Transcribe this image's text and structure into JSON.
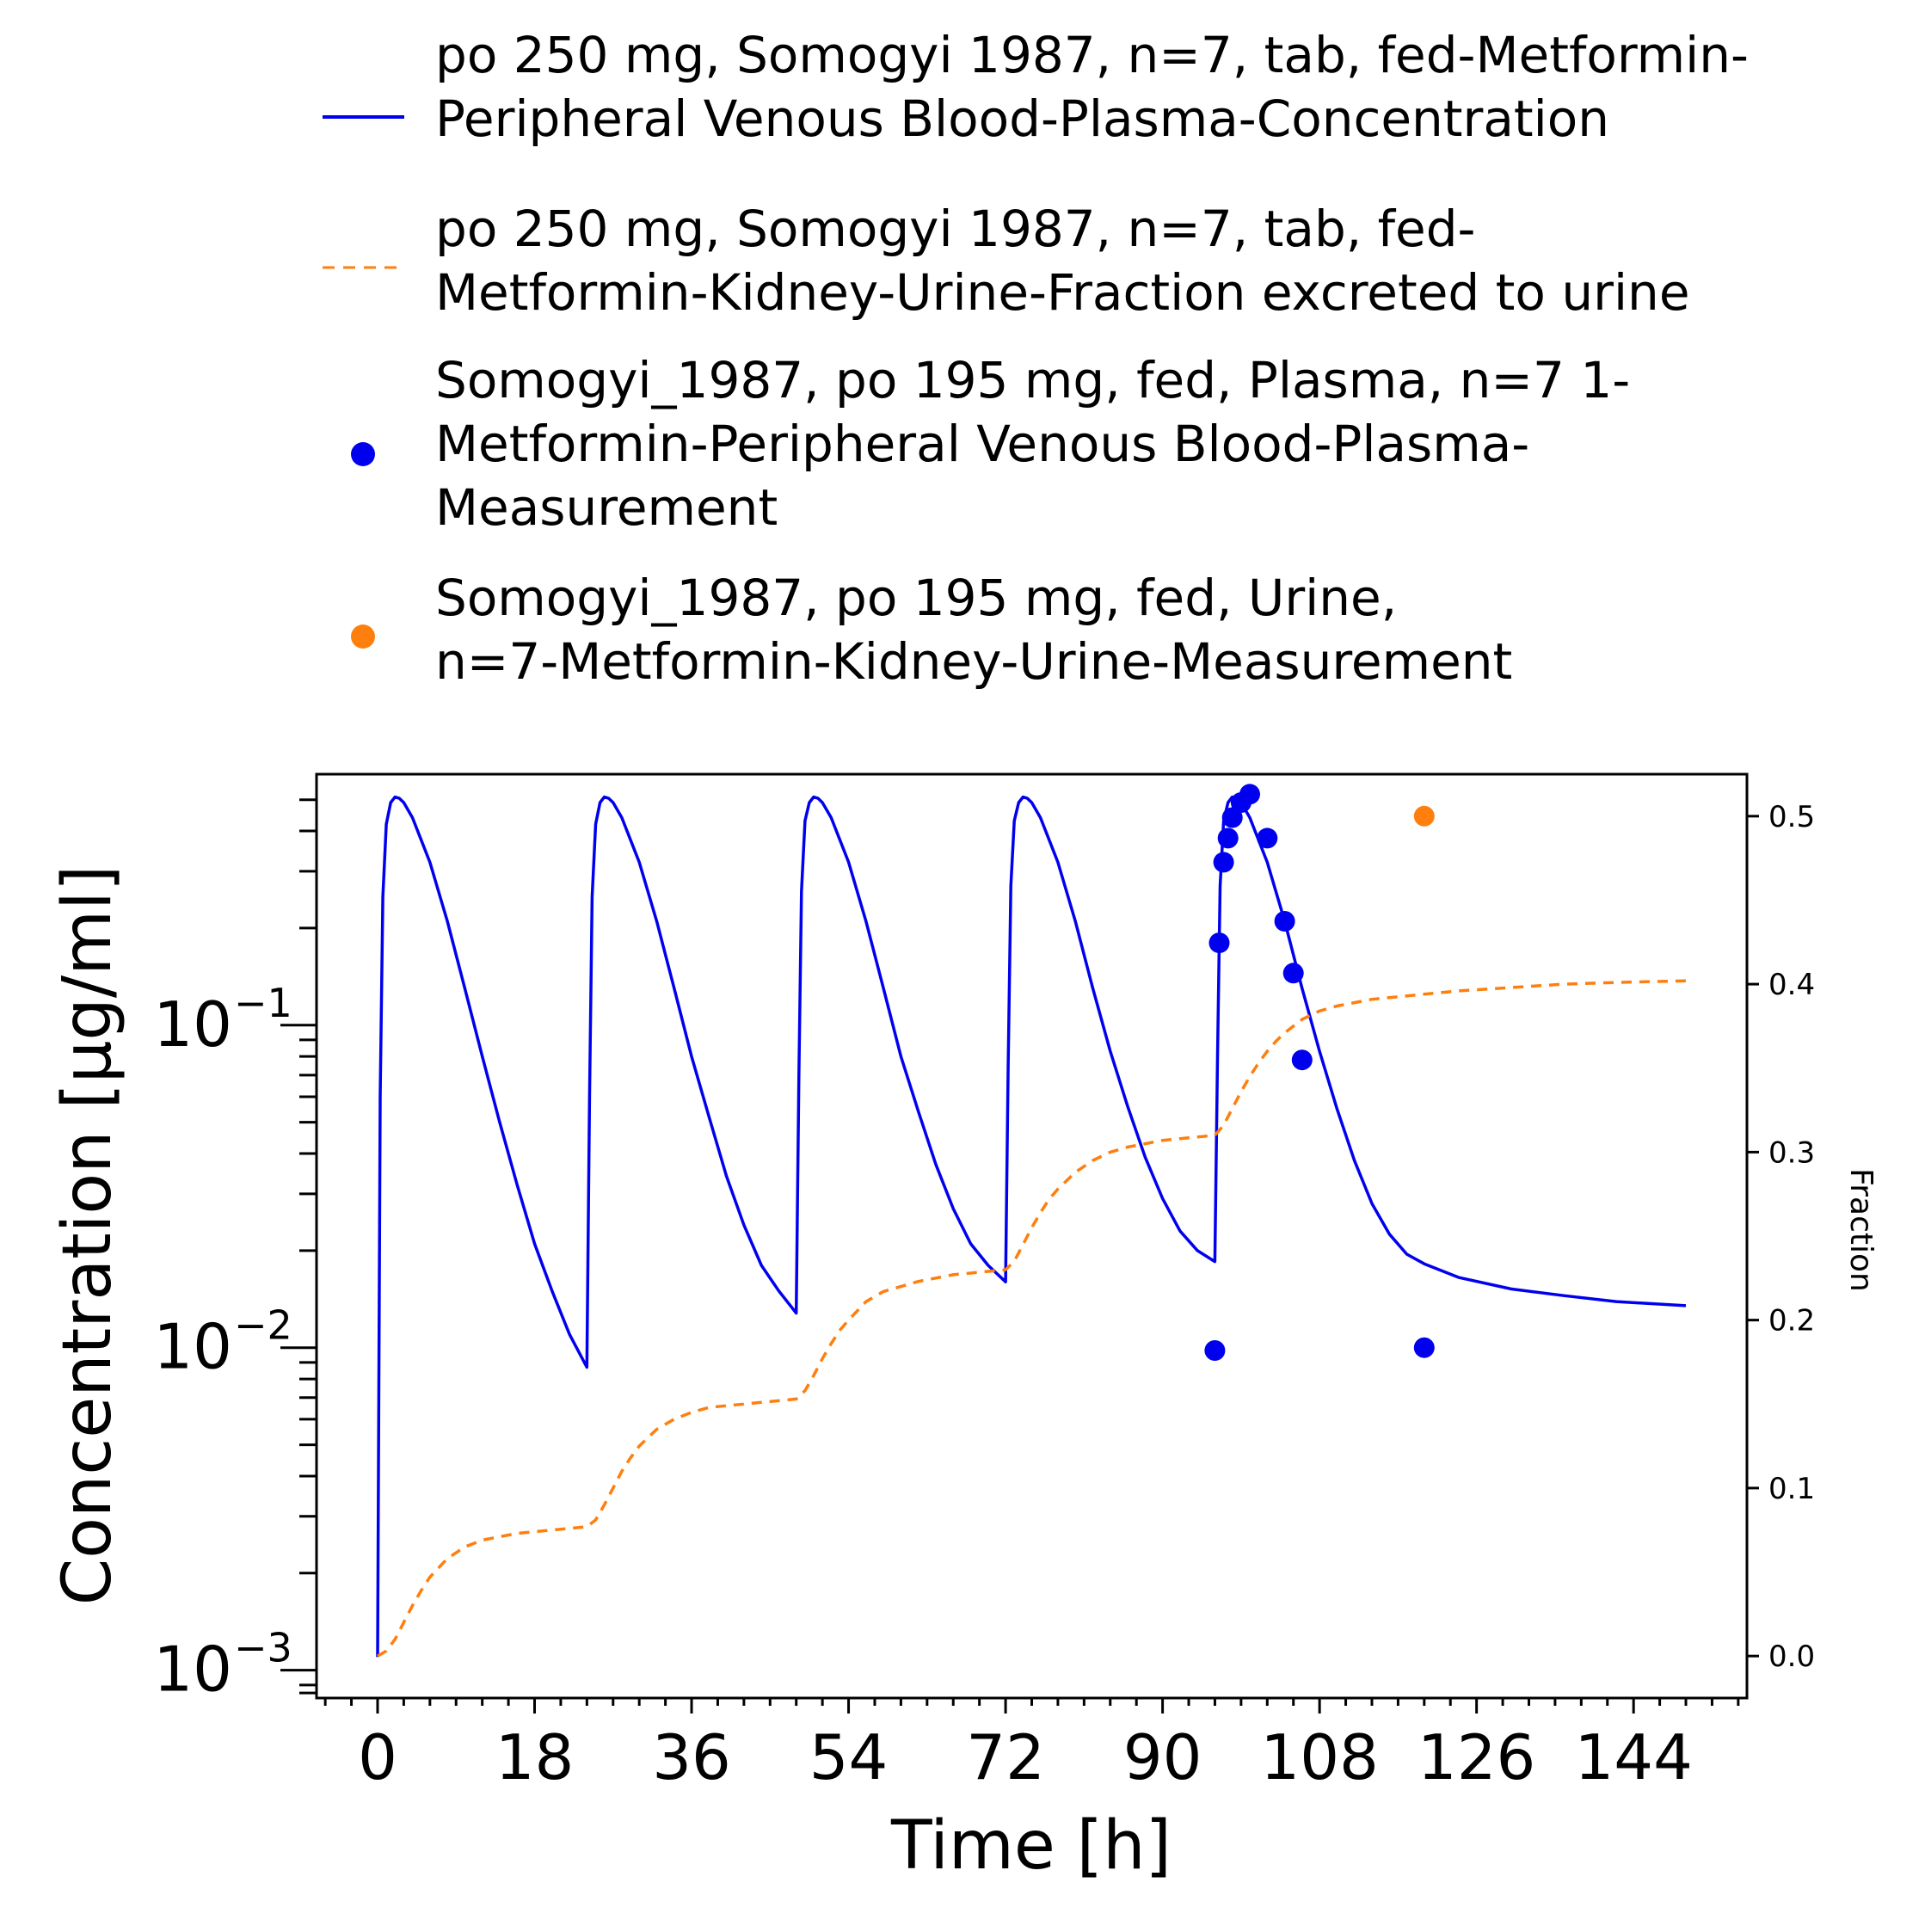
{
  "chart_data": {
    "type": "line",
    "x_axis": {
      "label": "Time [h]",
      "ticks": [
        0,
        18,
        36,
        54,
        72,
        90,
        108,
        126,
        144
      ],
      "range": [
        -7,
        157
      ]
    },
    "y_axis_left": {
      "label": "Concentration [µg/ml]",
      "scale": "log",
      "ticks": [
        {
          "value": 0.001,
          "base": "10",
          "exp": "−3"
        },
        {
          "value": 0.01,
          "base": "10",
          "exp": "−2"
        },
        {
          "value": 0.1,
          "base": "10",
          "exp": "−1"
        }
      ],
      "range": [
        0.00082,
        0.6
      ]
    },
    "y_axis_right": {
      "label": "Fraction",
      "scale": "linear",
      "ticks": [
        "0.0",
        "0.1",
        "0.2",
        "0.3",
        "0.4",
        "0.5"
      ],
      "tick_values": [
        0.0,
        0.1,
        0.2,
        0.3,
        0.4,
        0.5
      ],
      "range": [
        -0.025,
        0.525
      ]
    },
    "legend": {
      "placement": "above plot",
      "entries": [
        {
          "marker": "solid-line",
          "color": "#0000ee",
          "lines": [
            "po 250 mg, Somogyi 1987, n=7, tab, fed-Metformin-",
            "Peripheral Venous Blood-Plasma-Concentration"
          ]
        },
        {
          "marker": "dashed-line",
          "color": "#ff7f0e",
          "lines": [
            "po 250 mg, Somogyi 1987, n=7, tab, fed-",
            "Metformin-Kidney-Urine-Fraction excreted to urine"
          ]
        },
        {
          "marker": "dot",
          "color": "#0000ee",
          "lines": [
            "Somogyi_1987, po 195 mg, fed, Plasma, n=7 1-",
            "Metformin-Peripheral Venous Blood-Plasma-",
            "Measurement"
          ]
        },
        {
          "marker": "dot",
          "color": "#ff7f0e",
          "lines": [
            "Somogyi_1987, po 195 mg, fed, Urine,",
            "n=7-Metformin-Kidney-Urine-Measurement"
          ]
        }
      ]
    },
    "series": [
      {
        "name": "po 250 mg, Somogyi 1987, n=7, tab, fed-Metformin-Peripheral Venous Blood-Plasma-Concentration",
        "kind": "line",
        "axis": "left",
        "color": "#0000ee",
        "style": "solid",
        "x": [
          0,
          0.3,
          0.6,
          1.0,
          1.5,
          2.0,
          2.5,
          3.0,
          4,
          6,
          8,
          10,
          12,
          14,
          16,
          18,
          20,
          22,
          24,
          24.3,
          24.6,
          25.0,
          25.5,
          26.0,
          26.5,
          27,
          28,
          30,
          32,
          34,
          36,
          38,
          40,
          42,
          44,
          46,
          48,
          48.3,
          48.6,
          49.0,
          49.5,
          50.0,
          50.5,
          51,
          52,
          54,
          56,
          58,
          60,
          62,
          64,
          66,
          68,
          70,
          72,
          72.3,
          72.6,
          73.0,
          73.5,
          74.0,
          74.5,
          75,
          76,
          78,
          80,
          82,
          84,
          86,
          88,
          90,
          92,
          94,
          96,
          96.3,
          96.6,
          97.0,
          97.5,
          98.0,
          98.5,
          99,
          100,
          102,
          104,
          106,
          108,
          110,
          112,
          114,
          116,
          118,
          120,
          124,
          130,
          136,
          142,
          150
        ],
        "y": [
          0.0011,
          0.06,
          0.25,
          0.42,
          0.49,
          0.51,
          0.505,
          0.49,
          0.44,
          0.32,
          0.21,
          0.13,
          0.08,
          0.05,
          0.032,
          0.021,
          0.015,
          0.011,
          0.0087,
          0.06,
          0.25,
          0.42,
          0.49,
          0.51,
          0.505,
          0.49,
          0.44,
          0.32,
          0.21,
          0.13,
          0.08,
          0.052,
          0.034,
          0.024,
          0.018,
          0.015,
          0.0128,
          0.07,
          0.26,
          0.43,
          0.49,
          0.51,
          0.505,
          0.49,
          0.44,
          0.32,
          0.21,
          0.13,
          0.08,
          0.054,
          0.037,
          0.027,
          0.021,
          0.018,
          0.016,
          0.075,
          0.27,
          0.43,
          0.49,
          0.51,
          0.505,
          0.49,
          0.44,
          0.32,
          0.21,
          0.13,
          0.083,
          0.056,
          0.039,
          0.029,
          0.023,
          0.02,
          0.0185,
          0.08,
          0.27,
          0.43,
          0.49,
          0.51,
          0.505,
          0.49,
          0.44,
          0.32,
          0.21,
          0.13,
          0.083,
          0.055,
          0.038,
          0.028,
          0.0225,
          0.0195,
          0.0182,
          0.0165,
          0.0152,
          0.0145,
          0.0139,
          0.0135
        ]
      },
      {
        "name": "po 250 mg, Somogyi 1987, n=7, tab, fed-Metformin-Kidney-Urine-Fraction excreted to urine",
        "kind": "line",
        "axis": "right",
        "color": "#ff7f0e",
        "style": "dashed",
        "x": [
          0,
          1,
          2,
          3,
          4,
          5,
          6,
          8,
          10,
          12,
          14,
          16,
          18,
          20,
          22,
          24,
          25,
          26,
          27,
          28,
          29,
          30,
          32,
          34,
          36,
          38,
          40,
          42,
          44,
          46,
          48,
          49,
          50,
          51,
          52,
          53,
          54,
          56,
          58,
          60,
          62,
          64,
          66,
          68,
          70,
          72,
          73,
          74,
          75,
          76,
          77,
          78,
          80,
          82,
          84,
          86,
          88,
          90,
          92,
          94,
          96,
          97,
          98,
          99,
          100,
          101,
          102,
          103,
          104,
          106,
          108,
          110,
          112,
          114,
          116,
          118,
          120,
          124,
          130,
          136,
          142,
          150
        ],
        "y": [
          0.0,
          0.003,
          0.01,
          0.02,
          0.03,
          0.039,
          0.047,
          0.058,
          0.065,
          0.069,
          0.071,
          0.073,
          0.074,
          0.075,
          0.076,
          0.077,
          0.081,
          0.09,
          0.1,
          0.11,
          0.118,
          0.125,
          0.135,
          0.141,
          0.145,
          0.148,
          0.149,
          0.15,
          0.151,
          0.152,
          0.153,
          0.158,
          0.167,
          0.177,
          0.186,
          0.194,
          0.2,
          0.211,
          0.217,
          0.22,
          0.223,
          0.225,
          0.227,
          0.228,
          0.229,
          0.23,
          0.235,
          0.245,
          0.255,
          0.264,
          0.272,
          0.278,
          0.288,
          0.295,
          0.3,
          0.303,
          0.305,
          0.307,
          0.308,
          0.309,
          0.31,
          0.316,
          0.326,
          0.336,
          0.345,
          0.353,
          0.36,
          0.366,
          0.371,
          0.379,
          0.384,
          0.387,
          0.389,
          0.391,
          0.392,
          0.393,
          0.394,
          0.396,
          0.398,
          0.4,
          0.401,
          0.402
        ]
      },
      {
        "name": "Somogyi_1987, po 195 mg, fed, Plasma, n=7 1-Metformin-Peripheral Venous Blood-Plasma-Measurement",
        "kind": "scatter",
        "axis": "left",
        "color": "#0000ee",
        "x": [
          96,
          96.5,
          97,
          97.5,
          98,
          99,
          100,
          102,
          104,
          105,
          106,
          120
        ],
        "y": [
          0.0098,
          0.18,
          0.32,
          0.38,
          0.44,
          0.49,
          0.52,
          0.38,
          0.21,
          0.145,
          0.078,
          0.01
        ]
      },
      {
        "name": "Somogyi_1987, po 195 mg, fed, Urine, n=7-Metformin-Kidney-Urine-Measurement",
        "kind": "scatter",
        "axis": "right",
        "color": "#ff7f0e",
        "x": [
          120
        ],
        "y": [
          0.5
        ]
      }
    ]
  }
}
